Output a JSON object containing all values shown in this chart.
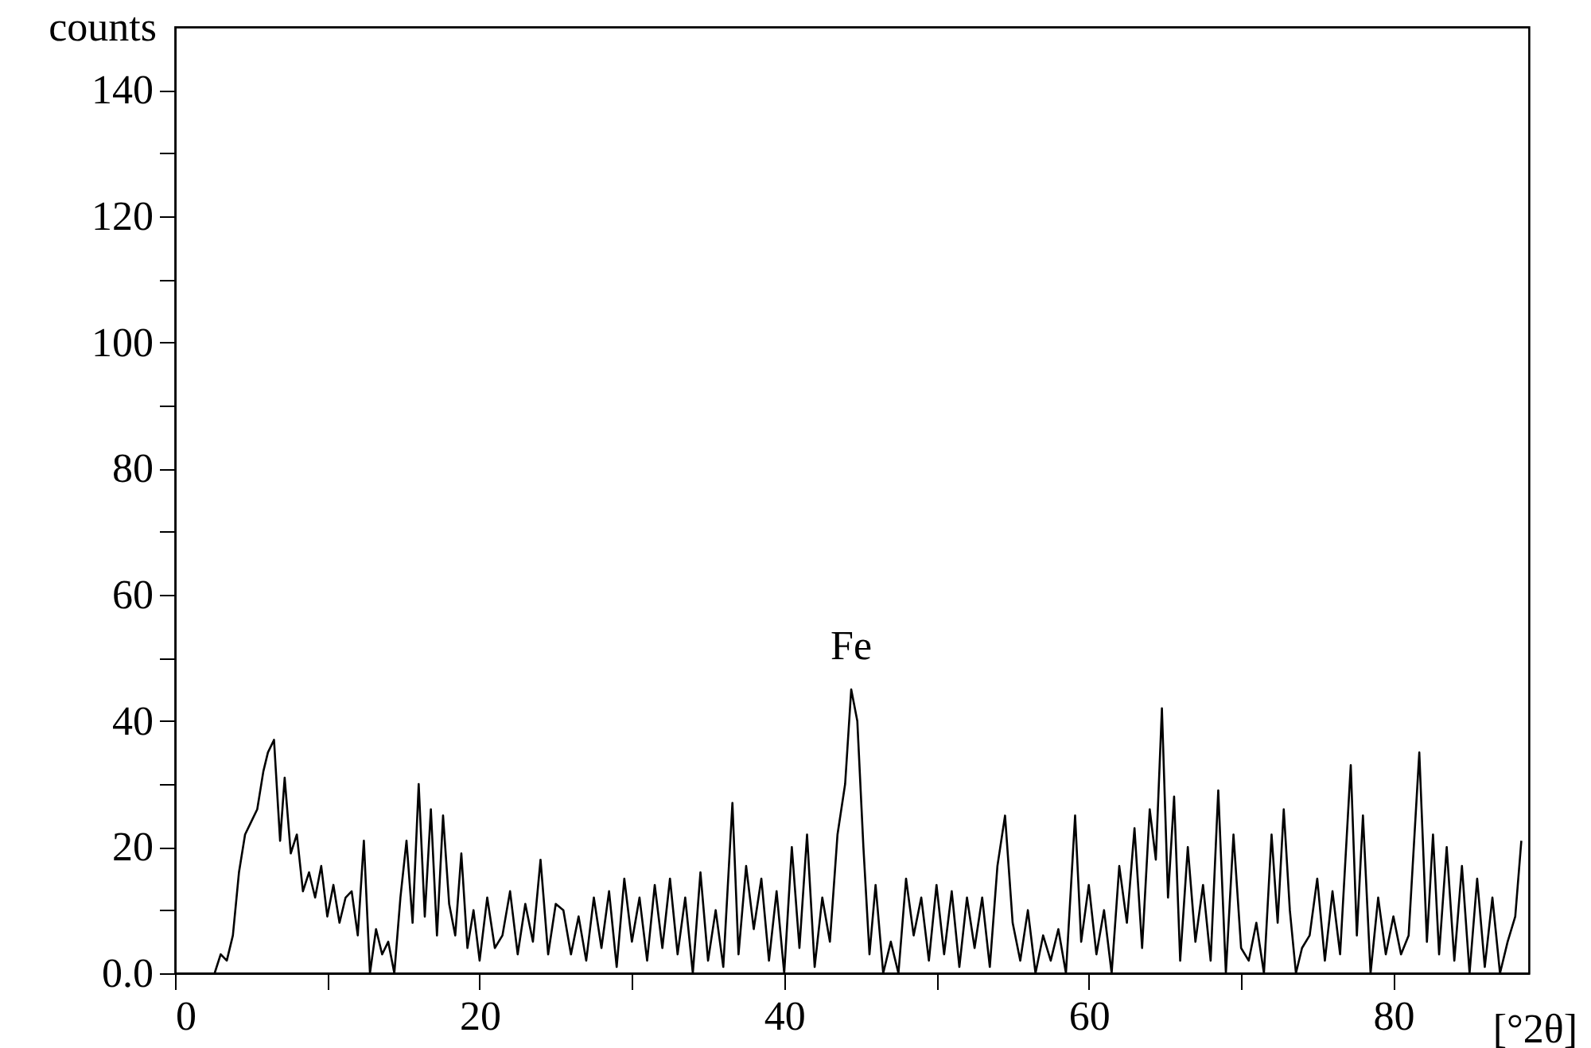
{
  "chart_data": {
    "type": "line",
    "xlabel": "[°2θ]",
    "ylabel": "counts",
    "line_style": "solid",
    "annotations": [
      {
        "text": "Fe",
        "x": 44.4,
        "y": 45
      }
    ],
    "xlim": [
      0,
      88.9
    ],
    "ylim": [
      0,
      150
    ],
    "xticks": [
      0,
      {
        "value": 10,
        "label": null
      },
      20,
      {
        "value": 30,
        "label": null
      },
      40,
      {
        "value": 50,
        "label": null
      },
      60,
      {
        "value": 70,
        "label": null
      },
      80
    ],
    "yticks": [
      {
        "value": 0,
        "label": "0.0"
      },
      {
        "value": 10,
        "label": null
      },
      20,
      {
        "value": 30,
        "label": null
      },
      40,
      {
        "value": 50,
        "label": null
      },
      60,
      {
        "value": 70,
        "label": null
      },
      80,
      {
        "value": 90,
        "label": null
      },
      100,
      {
        "value": 110,
        "label": null
      },
      120,
      {
        "value": 130,
        "label": null
      },
      140
    ],
    "x": [
      2.6,
      3.0,
      3.4,
      3.8,
      4.2,
      4.6,
      5.0,
      5.4,
      5.8,
      6.1,
      6.5,
      6.9,
      7.2,
      7.6,
      8.0,
      8.4,
      8.8,
      9.2,
      9.6,
      10.0,
      10.4,
      10.8,
      11.2,
      11.6,
      12.0,
      12.4,
      12.8,
      13.2,
      13.6,
      14.0,
      14.4,
      14.8,
      15.2,
      15.6,
      16.0,
      16.4,
      16.8,
      17.2,
      17.6,
      18.0,
      18.4,
      18.8,
      19.2,
      19.6,
      20.0,
      20.5,
      21.0,
      21.5,
      22.0,
      22.5,
      23.0,
      23.5,
      24.0,
      24.5,
      25.0,
      25.5,
      26.0,
      26.5,
      27.0,
      27.5,
      28.0,
      28.5,
      29.0,
      29.5,
      30.0,
      30.5,
      31.0,
      31.5,
      32.0,
      32.5,
      33.0,
      33.5,
      34.0,
      34.5,
      35.0,
      35.5,
      36.0,
      36.6,
      37.0,
      37.5,
      38.0,
      38.5,
      39.0,
      39.5,
      40.0,
      40.5,
      41.0,
      41.5,
      42.0,
      42.5,
      43.0,
      43.5,
      44.0,
      44.4,
      44.8,
      45.2,
      45.6,
      46.0,
      46.5,
      47.0,
      47.5,
      48.0,
      48.5,
      49.0,
      49.5,
      50.0,
      50.5,
      51.0,
      51.5,
      52.0,
      52.5,
      53.0,
      53.5,
      54.0,
      54.5,
      55.0,
      55.5,
      56.0,
      56.5,
      57.0,
      57.5,
      58.0,
      58.5,
      59.1,
      59.5,
      60.0,
      60.5,
      61.0,
      61.5,
      62.0,
      62.5,
      63.0,
      63.5,
      64.0,
      64.4,
      64.8,
      65.2,
      65.6,
      66.0,
      66.5,
      67.0,
      67.5,
      68.0,
      68.5,
      69.0,
      69.5,
      70.0,
      70.5,
      71.0,
      71.5,
      72.0,
      72.4,
      72.8,
      73.2,
      73.6,
      74.0,
      74.5,
      75.0,
      75.5,
      76.0,
      76.5,
      77.2,
      77.6,
      78.0,
      78.5,
      79.0,
      79.5,
      80.0,
      80.5,
      81.0,
      81.7,
      82.2,
      82.6,
      83.0,
      83.5,
      84.0,
      84.5,
      85.0,
      85.5,
      86.0,
      86.5,
      87.0,
      87.5,
      88.0,
      88.4
    ],
    "series": [
      {
        "color": "#000000",
        "values": [
          0,
          3,
          2,
          6,
          16,
          22,
          24,
          26,
          32,
          35,
          37,
          21,
          31,
          19,
          22,
          13,
          16,
          12,
          17,
          9,
          14,
          8,
          12,
          13,
          6,
          21,
          0,
          7,
          3,
          5,
          0,
          12,
          21,
          8,
          30,
          9,
          26,
          6,
          25,
          11,
          6,
          19,
          4,
          10,
          2,
          12,
          4,
          6,
          13,
          3,
          11,
          5,
          18,
          3,
          11,
          10,
          3,
          9,
          2,
          12,
          4,
          13,
          1,
          15,
          5,
          12,
          2,
          14,
          4,
          15,
          3,
          12,
          0,
          16,
          2,
          10,
          1,
          27,
          3,
          17,
          7,
          15,
          2,
          13,
          0,
          20,
          4,
          22,
          1,
          12,
          5,
          22,
          30,
          45,
          40,
          20,
          3,
          14,
          0,
          5,
          0,
          15,
          6,
          12,
          2,
          14,
          3,
          13,
          1,
          12,
          4,
          12,
          1,
          17,
          25,
          8,
          2,
          10,
          0,
          6,
          2,
          7,
          0,
          25,
          5,
          14,
          3,
          10,
          0,
          17,
          8,
          23,
          4,
          26,
          18,
          42,
          12,
          28,
          2,
          20,
          5,
          14,
          2,
          29,
          0,
          22,
          4,
          2,
          8,
          0,
          22,
          8,
          26,
          10,
          0,
          4,
          6,
          15,
          2,
          13,
          3,
          33,
          6,
          25,
          0,
          12,
          3,
          9,
          3,
          6,
          35,
          5,
          22,
          3,
          20,
          2,
          17,
          0,
          15,
          1,
          12,
          0,
          5,
          9,
          21
        ]
      }
    ]
  }
}
